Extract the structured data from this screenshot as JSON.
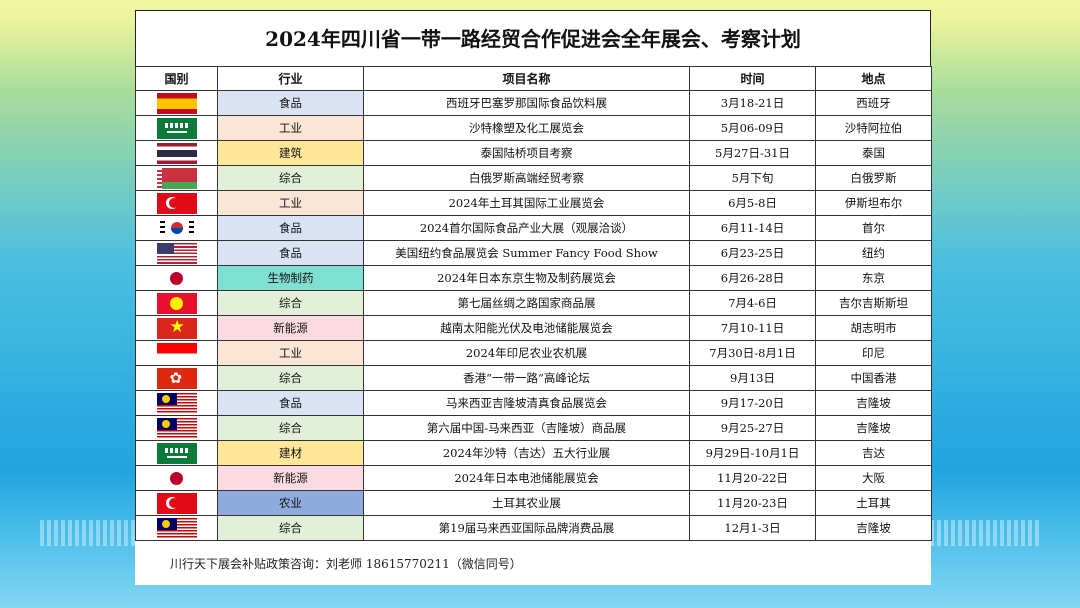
{
  "title": "2024年四川省一带一路经贸合作促进会全年展会、考察计划",
  "headers": {
    "country": "国别",
    "industry": "行业",
    "project": "项目名称",
    "time": "时间",
    "location": "地点"
  },
  "rows": [
    {
      "flag": "spain-flag",
      "industry": "食品",
      "industry_color": "#dae3f3",
      "project": "西班牙巴塞罗那国际食品饮料展",
      "time": "3月18-21日",
      "location": "西班牙"
    },
    {
      "flag": "saudi-flag",
      "industry": "工业",
      "industry_color": "#fbe5d6",
      "project": "沙特橡塑及化工展览会",
      "time": "5月06-09日",
      "location": "沙特阿拉伯"
    },
    {
      "flag": "thailand-flag",
      "industry": "建筑",
      "industry_color": "#ffe699",
      "project": "泰国陆桥项目考察",
      "time": "5月27日-31日",
      "location": "泰国"
    },
    {
      "flag": "belarus-flag",
      "industry": "综合",
      "industry_color": "#e2f0d9",
      "project": "白俄罗斯高端经贸考察",
      "time": "5月下旬",
      "location": "白俄罗斯"
    },
    {
      "flag": "turkey-flag",
      "industry": "工业",
      "industry_color": "#fbe5d6",
      "project": "2024年土耳其国际工业展览会",
      "time": "6月5-8日",
      "location": "伊斯坦布尔"
    },
    {
      "flag": "korea-flag",
      "industry": "食品",
      "industry_color": "#dae3f3",
      "project": "2024首尔国际食品产业大展（观展洽谈）",
      "time": "6月11-14日",
      "location": "首尔"
    },
    {
      "flag": "usa-flag",
      "industry": "食品",
      "industry_color": "#dae3f3",
      "project": "美国纽约食品展览会 Summer Fancy Food Show",
      "time": "6月23-25日",
      "location": "纽约"
    },
    {
      "flag": "japan-flag",
      "industry": "生物制药",
      "industry_color": "#7fdfd2",
      "project": "2024年日本东京生物及制药展览会",
      "time": "6月26-28日",
      "location": "东京"
    },
    {
      "flag": "kyrgyzstan-flag",
      "industry": "综合",
      "industry_color": "#e2f0d9",
      "project": "第七届丝绸之路国家商品展",
      "time": "7月4-6日",
      "location": "吉尔吉斯斯坦"
    },
    {
      "flag": "vietnam-flag",
      "industry": "新能源",
      "industry_color": "#fadbe2",
      "project": "越南太阳能光伏及电池储能展览会",
      "time": "7月10-11日",
      "location": "胡志明市"
    },
    {
      "flag": "indonesia-flag",
      "industry": "工业",
      "industry_color": "#fbe5d6",
      "project": "2024年印尼农业农机展",
      "time": "7月30日-8月1日",
      "location": "印尼"
    },
    {
      "flag": "hongkong-flag",
      "industry": "综合",
      "industry_color": "#e2f0d9",
      "project": "香港“一带一路”高峰论坛",
      "time": "9月13日",
      "location": "中国香港"
    },
    {
      "flag": "malaysia-flag",
      "industry": "食品",
      "industry_color": "#dae3f3",
      "project": "马来西亚吉隆坡清真食品展览会",
      "time": "9月17-20日",
      "location": "吉隆坡"
    },
    {
      "flag": "malaysia-flag",
      "industry": "综合",
      "industry_color": "#e2f0d9",
      "project": "第六届中国-马来西亚（吉隆坡）商品展",
      "time": "9月25-27日",
      "location": "吉隆坡"
    },
    {
      "flag": "saudi-flag",
      "industry": "建材",
      "industry_color": "#ffe699",
      "project": "2024年沙特（吉达）五大行业展",
      "time": "9月29日-10月1日",
      "location": "吉达"
    },
    {
      "flag": "japan-flag",
      "industry": "新能源",
      "industry_color": "#fadbe2",
      "project": "2024年日本电池储能展览会",
      "time": "11月20-22日",
      "location": "大阪"
    },
    {
      "flag": "turkey-flag",
      "industry": "农业",
      "industry_color": "#8faadc",
      "project": "土耳其农业展",
      "time": "11月20-23日",
      "location": "土耳其"
    },
    {
      "flag": "malaysia-flag",
      "industry": "综合",
      "industry_color": "#e2f0d9",
      "project": "第19届马来西亚国际品牌消费品展",
      "time": "12月1-3日",
      "location": "吉隆坡"
    }
  ],
  "footer": "川行天下展会补贴政策咨询：刘老师 18615770211（微信同号）"
}
